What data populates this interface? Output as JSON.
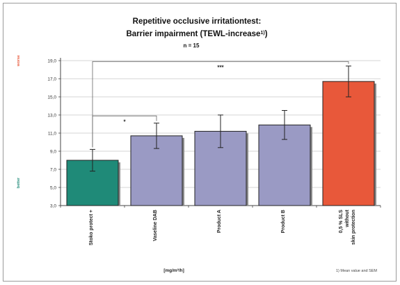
{
  "chart_data": {
    "type": "bar",
    "title_line1": "Repetitive occlusive irritationtest:",
    "title_line2": "Barrier impairment (TEWL-increase",
    "title_superscript": "1)",
    "title_line2_end": ")",
    "subtitle": "n = 15",
    "xlabel": "[mg/m²/h]",
    "footnote": "1) Mean value and SEM",
    "ylim": [
      3.0,
      19.0
    ],
    "ytick_labels": [
      "3,0",
      "5,0",
      "7,0",
      "9,0",
      "11,0",
      "13,0",
      "15,0",
      "17,0",
      "19,0"
    ],
    "y_top_label": "worse",
    "y_bottom_label": "better",
    "categories": [
      "Stoko protect +",
      "Vaseline DAB",
      "Product A",
      "Product B",
      "0,5 % SLS without skin protection"
    ],
    "category_label_lines": [
      [
        "Stoko protect +"
      ],
      [
        "Vaseline DAB"
      ],
      [
        "Product A"
      ],
      [
        "Product B"
      ],
      [
        "0,5 % SLS",
        "without",
        "skin protection"
      ]
    ],
    "values": [
      8.0,
      10.7,
      11.2,
      11.9,
      16.7
    ],
    "error_low": [
      6.8,
      9.3,
      9.4,
      10.3,
      15.0
    ],
    "error_high": [
      9.2,
      12.1,
      13.0,
      13.5,
      18.4
    ],
    "colors": [
      "#1f8a78",
      "#9a9ac4",
      "#9a9ac4",
      "#9a9ac4",
      "#e8583a"
    ],
    "significance": [
      {
        "from": 0,
        "to": 1,
        "label": "*"
      },
      {
        "from": 0,
        "to": 4,
        "label": "***"
      }
    ],
    "colors_meta": {
      "worse": "#e8583a",
      "better": "#1f8a78",
      "grid": "#c8c8c8"
    },
    "grid": true
  }
}
